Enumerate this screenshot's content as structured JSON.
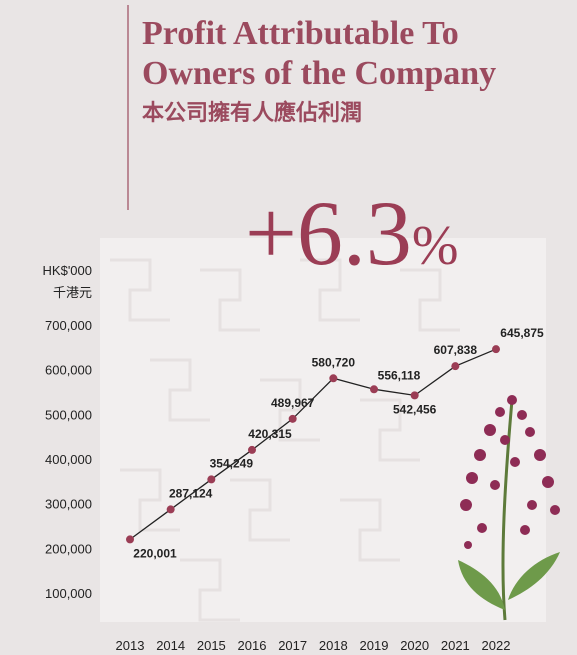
{
  "chart_data": {
    "type": "line",
    "title": "Profit Attributable To",
    "title_line2": "Owners of the Company",
    "subtitle": "本公司擁有人應佔利潤",
    "headline_value": "+6.3",
    "headline_unit": "%",
    "y_unit": "HK$'000",
    "y_unit_zh": "千港元",
    "categories": [
      "2013",
      "2014",
      "2015",
      "2016",
      "2017",
      "2018",
      "2019",
      "2020",
      "2021",
      "2022"
    ],
    "values": [
      220001,
      287124,
      354249,
      420315,
      489967,
      580720,
      556118,
      542456,
      607838,
      645875
    ],
    "value_labels": [
      "220,001",
      "287,124",
      "354,249",
      "420,315",
      "489,967",
      "580,720",
      "556,118",
      "542,456",
      "607,838",
      "645,875"
    ],
    "color": "#9b3d55",
    "line_color": "#222222",
    "ylim": [
      100000,
      700000
    ],
    "yticks": [
      {
        "value": 100000,
        "label": "100,000"
      },
      {
        "value": 200000,
        "label": "200,000"
      },
      {
        "value": 300000,
        "label": "300,000"
      },
      {
        "value": 400000,
        "label": "400,000"
      },
      {
        "value": 500000,
        "label": "500,000"
      },
      {
        "value": 600000,
        "label": "600,000"
      },
      {
        "value": 700000,
        "label": "700,000"
      }
    ],
    "grid": false
  }
}
